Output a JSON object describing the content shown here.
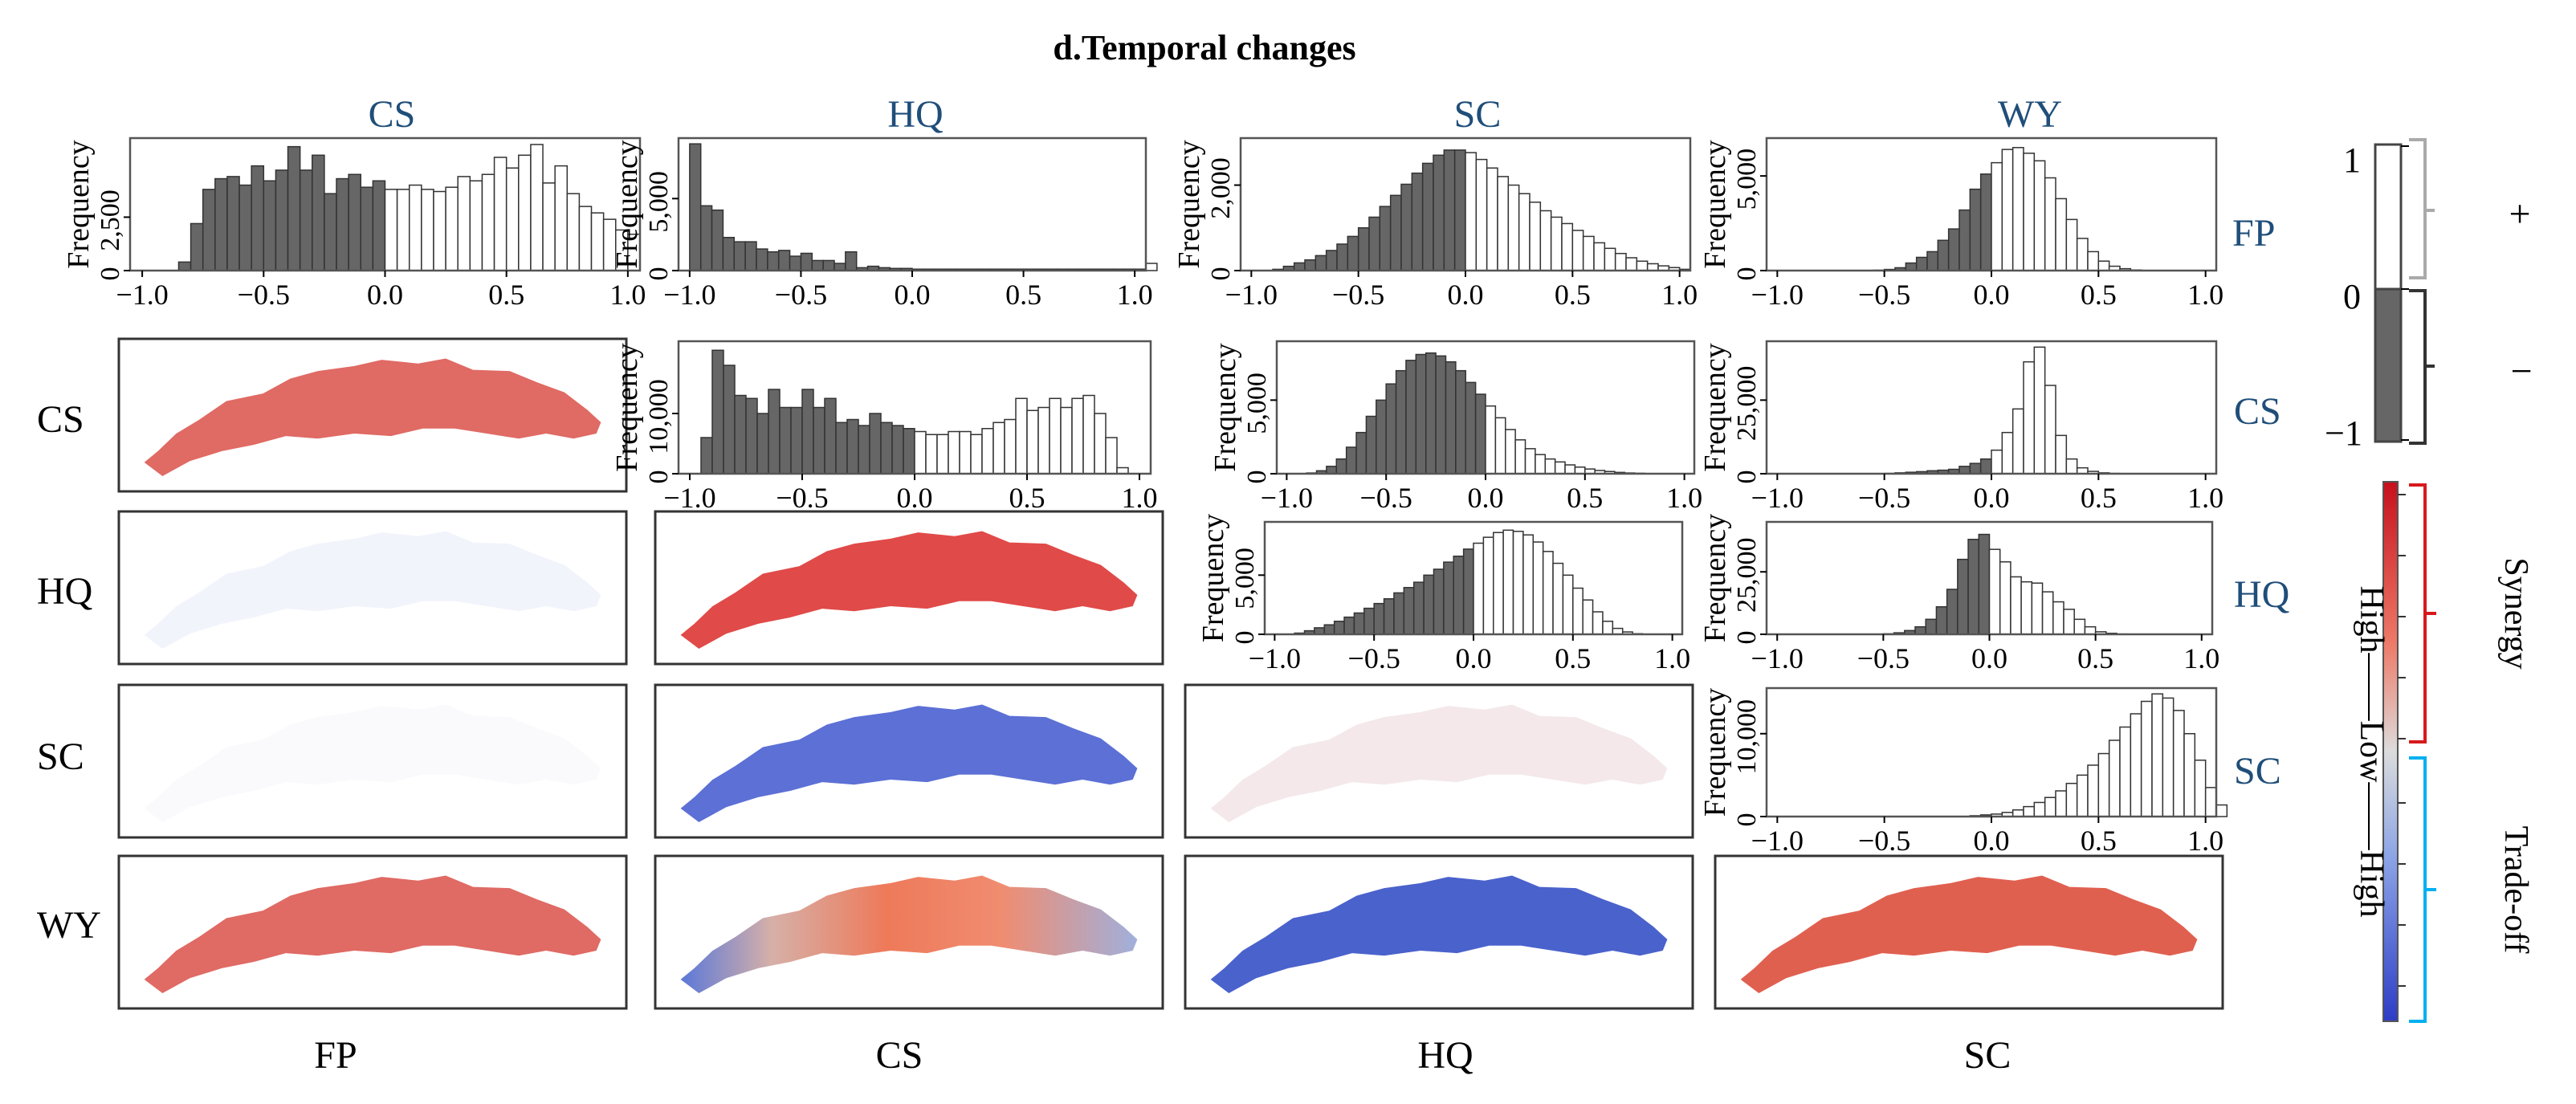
{
  "figure_title": "d.Temporal changes",
  "column_headers": [
    "CS",
    "HQ",
    "SC",
    "WY"
  ],
  "row_right_labels": [
    "FP",
    "CS",
    "HQ",
    "SC"
  ],
  "row_left_labels": [
    "CS",
    "HQ",
    "SC",
    "WY"
  ],
  "bottom_labels": [
    "FP",
    "CS",
    "HQ",
    "SC"
  ],
  "legend": {
    "sign_ticks": [
      "1",
      "0",
      "−1"
    ],
    "plus": "+",
    "minus": "−",
    "gradient_label": "High——Low——High",
    "synergy": "Synergy",
    "tradeoff": "Trade-off"
  },
  "colors": {
    "header_blue": "#1f4e79",
    "negative_bar": "#666666",
    "positive_bar": "#ffffff",
    "synergy_red": "#d7191c",
    "tradeoff_blue": "#00b0f0"
  },
  "chart_data": [
    {
      "id": "FP-CS",
      "row_label": "FP",
      "col_label": "CS",
      "type": "bar",
      "ylabel": "Frequency",
      "yticks": [
        "0",
        "2,500"
      ],
      "ytick_values": [
        0,
        2500
      ],
      "ymax": 6200,
      "xticks": [
        "−1.0",
        "−0.5",
        "0.0",
        "0.5",
        "1.0"
      ],
      "xlim": [
        -1.05,
        1.05
      ],
      "bin_start": -1.0,
      "bin_width": 0.05,
      "values": [
        0,
        0,
        0,
        400,
        2200,
        3800,
        4300,
        4400,
        4000,
        4900,
        4200,
        4700,
        5800,
        4700,
        5400,
        3600,
        4300,
        4500,
        3900,
        4200,
        3800,
        3800,
        4000,
        3800,
        3700,
        3900,
        4400,
        4200,
        4500,
        5300,
        4800,
        5400,
        5900,
        4100,
        4900,
        3600,
        3000,
        2700,
        2400,
        1900,
        1700,
        0
      ]
    },
    {
      "id": "FP-HQ",
      "row_label": "FP",
      "col_label": "HQ",
      "type": "bar",
      "ylabel": "Frequency",
      "yticks": [
        "0",
        "5,000"
      ],
      "ytick_values": [
        0,
        5000
      ],
      "ymax": 9200,
      "xticks": [
        "−1.0",
        "−0.5",
        "0.0",
        "0.5",
        "1.0"
      ],
      "xlim": [
        -1.05,
        1.05
      ],
      "bin_start": -1.0,
      "bin_width": 0.05,
      "values": [
        8800,
        4500,
        4200,
        2300,
        2000,
        2000,
        1500,
        1300,
        1400,
        1000,
        1200,
        700,
        700,
        500,
        1300,
        200,
        300,
        200,
        150,
        150,
        100,
        100,
        100,
        100,
        100,
        100,
        100,
        100,
        100,
        100,
        100,
        100,
        100,
        100,
        100,
        100,
        100,
        100,
        100,
        100,
        100,
        500
      ]
    },
    {
      "id": "FP-SC",
      "row_label": "FP",
      "col_label": "SC",
      "type": "bar",
      "ylabel": "Frequency",
      "yticks": [
        "0",
        "2,000"
      ],
      "ytick_values": [
        0,
        2000
      ],
      "ymax": 3100,
      "xticks": [
        "−1.0",
        "−0.5",
        "0.0",
        "0.5",
        "1.0"
      ],
      "xlim": [
        -1.05,
        1.05
      ],
      "bin_start": -1.0,
      "bin_width": 0.05,
      "values": [
        0,
        0,
        30,
        100,
        180,
        250,
        350,
        470,
        620,
        800,
        1000,
        1250,
        1500,
        1760,
        2020,
        2280,
        2510,
        2700,
        2820,
        2820,
        2760,
        2600,
        2400,
        2200,
        2000,
        1800,
        1600,
        1400,
        1250,
        1100,
        940,
        800,
        650,
        520,
        400,
        300,
        220,
        160,
        110,
        70,
        30,
        0
      ]
    },
    {
      "id": "FP-WY",
      "row_label": "FP",
      "col_label": "WY",
      "type": "bar",
      "ylabel": "Frequency",
      "yticks": [
        "0",
        "5,000"
      ],
      "ytick_values": [
        0,
        5000
      ],
      "ymax": 7000,
      "xticks": [
        "−1.0",
        "−0.5",
        "0.0",
        "0.5",
        "1.0"
      ],
      "xlim": [
        -1.05,
        1.05
      ],
      "bin_start": -1.0,
      "bin_width": 0.05,
      "values": [
        0,
        0,
        0,
        0,
        0,
        0,
        0,
        0,
        0,
        20,
        60,
        150,
        400,
        700,
        1000,
        1600,
        2200,
        3200,
        4300,
        5100,
        5700,
        6400,
        6500,
        6200,
        5800,
        4900,
        3800,
        2700,
        1700,
        1000,
        500,
        230,
        100,
        30,
        0,
        0,
        0,
        0,
        0,
        0,
        0,
        0
      ]
    },
    {
      "id": "CS-HQ",
      "row_label": "CS",
      "col_label": "HQ",
      "type": "bar",
      "ylabel": "Frequency",
      "yticks": [
        "0",
        "10,000"
      ],
      "ytick_values": [
        0,
        10000
      ],
      "ymax": 22000,
      "xticks": [
        "−1.0",
        "−0.5",
        "0.0",
        "0.5",
        "1.0"
      ],
      "xlim": [
        -1.05,
        1.05
      ],
      "bin_start": -1.0,
      "bin_width": 0.05,
      "values": [
        0,
        6000,
        20500,
        18000,
        13000,
        12500,
        10000,
        14000,
        11000,
        11000,
        14000,
        11000,
        12500,
        8500,
        9000,
        8000,
        10000,
        8500,
        8000,
        7500,
        7000,
        6500,
        6500,
        7000,
        7000,
        6500,
        7500,
        8500,
        9000,
        12500,
        10500,
        11000,
        12500,
        11000,
        12500,
        13000,
        10000,
        6000,
        1000,
        0,
        0,
        0
      ]
    },
    {
      "id": "CS-SC",
      "row_label": "CS",
      "col_label": "SC",
      "type": "bar",
      "ylabel": "Frequency",
      "yticks": [
        "0",
        "5,000"
      ],
      "ytick_values": [
        0,
        5000
      ],
      "ymax": 9000,
      "xticks": [
        "−1.0",
        "−0.5",
        "0.0",
        "0.5",
        "1.0"
      ],
      "xlim": [
        -1.05,
        1.05
      ],
      "bin_start": -1.0,
      "bin_width": 0.05,
      "values": [
        0,
        0,
        50,
        200,
        500,
        1000,
        1800,
        2800,
        3900,
        5000,
        6100,
        7000,
        7700,
        8100,
        8200,
        8000,
        7600,
        7000,
        6200,
        5400,
        4600,
        3800,
        3000,
        2300,
        1700,
        1300,
        1000,
        800,
        600,
        450,
        320,
        220,
        150,
        90,
        50,
        30,
        10,
        0,
        0,
        0,
        0,
        0
      ]
    },
    {
      "id": "CS-WY",
      "row_label": "CS",
      "col_label": "WY",
      "type": "bar",
      "ylabel": "Frequency",
      "yticks": [
        "0",
        "25,000"
      ],
      "ytick_values": [
        0,
        25000
      ],
      "ymax": 45000,
      "xticks": [
        "−1.0",
        "−0.5",
        "0.0",
        "0.5",
        "1.0"
      ],
      "xlim": [
        -1.05,
        1.05
      ],
      "bin_start": -1.0,
      "bin_width": 0.05,
      "values": [
        0,
        0,
        0,
        0,
        0,
        0,
        0,
        0,
        0,
        0,
        100,
        300,
        500,
        700,
        1000,
        1200,
        1500,
        2500,
        3500,
        5000,
        8000,
        14000,
        22000,
        38000,
        43000,
        30000,
        13000,
        5000,
        2000,
        800,
        300,
        100,
        0,
        0,
        0,
        0,
        0,
        0,
        0,
        0,
        0,
        0
      ]
    },
    {
      "id": "HQ-SC",
      "row_label": "HQ",
      "col_label": "SC",
      "type": "bar",
      "ylabel": "Frequency",
      "yticks": [
        "0",
        "5,000"
      ],
      "ytick_values": [
        0,
        5000
      ],
      "ymax": 9500,
      "xticks": [
        "−1.0",
        "−0.5",
        "0.0",
        "0.5",
        "1.0"
      ],
      "xlim": [
        -1.05,
        1.05
      ],
      "bin_start": -1.0,
      "bin_width": 0.05,
      "values": [
        0,
        0,
        100,
        300,
        550,
        800,
        1100,
        1450,
        1800,
        2200,
        2600,
        3000,
        3500,
        3950,
        4400,
        5000,
        5500,
        6100,
        6600,
        7200,
        7700,
        8200,
        8600,
        8800,
        8700,
        8400,
        7800,
        7000,
        6000,
        5000,
        3900,
        2900,
        1900,
        1100,
        500,
        200,
        50,
        0,
        0,
        0,
        0,
        0
      ]
    },
    {
      "id": "HQ-WY",
      "row_label": "HQ",
      "col_label": "WY",
      "type": "bar",
      "ylabel": "Frequency",
      "yticks": [
        "0",
        "25,000"
      ],
      "ytick_values": [
        0,
        25000
      ],
      "ymax": 45000,
      "xticks": [
        "−1.0",
        "−0.5",
        "0.0",
        "0.5",
        "1.0"
      ],
      "xlim": [
        -1.05,
        1.05
      ],
      "bin_start": -1.0,
      "bin_width": 0.05,
      "values": [
        0,
        0,
        0,
        0,
        0,
        0,
        0,
        0,
        0,
        0,
        200,
        600,
        1500,
        3000,
        6000,
        11000,
        18000,
        30000,
        38000,
        40000,
        34000,
        29000,
        23000,
        21000,
        20500,
        17000,
        13000,
        10000,
        6000,
        3000,
        1000,
        400,
        100,
        0,
        0,
        0,
        0,
        0,
        0,
        0,
        0,
        0
      ]
    },
    {
      "id": "SC-WY",
      "row_label": "SC",
      "col_label": "WY",
      "type": "bar",
      "ylabel": "Frequency",
      "yticks": [
        "0",
        "10,000"
      ],
      "ytick_values": [
        0,
        10000
      ],
      "ymax": 15500,
      "xticks": [
        "−1.0",
        "−0.5",
        "0.0",
        "0.5",
        "1.0"
      ],
      "xlim": [
        -1.05,
        1.05
      ],
      "bin_start": -1.0,
      "bin_width": 0.05,
      "values": [
        0,
        0,
        0,
        0,
        0,
        0,
        0,
        0,
        0,
        0,
        0,
        0,
        0,
        0,
        0,
        0,
        0,
        0,
        100,
        200,
        300,
        500,
        800,
        1200,
        1700,
        2300,
        3100,
        4000,
        5000,
        6200,
        7600,
        9200,
        10800,
        12400,
        13900,
        14800,
        14300,
        12800,
        10000,
        6800,
        3500,
        1400
      ]
    }
  ]
}
